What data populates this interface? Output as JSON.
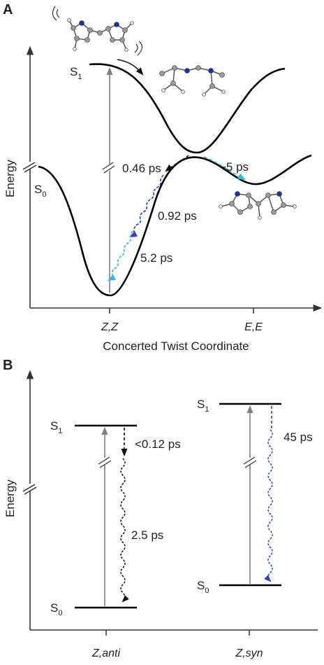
{
  "panel_a": {
    "label": "A",
    "y_axis_label": "Energy",
    "x_axis_label": "Concerted Twist Coordinate",
    "x_ticks": [
      "Z,Z",
      "E,E"
    ],
    "states": {
      "s1": "S",
      "s1_sub": "1",
      "s0": "S",
      "s0_sub": "0"
    },
    "time_labels": {
      "t1": "0.46 ps",
      "t2": "~5 ps",
      "t3": "0.92 ps",
      "t4": "5.2 ps"
    }
  },
  "panel_b": {
    "label": "B",
    "y_axis_label": "Energy",
    "x_ticks": [
      {
        "pre": "Z,",
        "ital": "anti"
      },
      {
        "pre": "Z,",
        "ital": "syn"
      }
    ],
    "left": {
      "s1": "S",
      "s1_sub": "1",
      "s0": "S",
      "s0_sub": "0",
      "upper_time": "<0.12 ps",
      "lower_time": "2.5 ps"
    },
    "right": {
      "s1": "S",
      "s1_sub": "1",
      "s0": "S",
      "s0_sub": "0",
      "time": "45 ps"
    }
  },
  "colors": {
    "curve": "#000000",
    "axis": "#333333",
    "excitation": "#7f7f7f",
    "decay_dark": "#111111",
    "decay_blue": "#2a3ed0",
    "decay_cyan": "#2cbbe0",
    "atom_c": "#9a9a9a",
    "atom_n": "#1a2fb0",
    "atom_h": "#e6e6e6"
  }
}
